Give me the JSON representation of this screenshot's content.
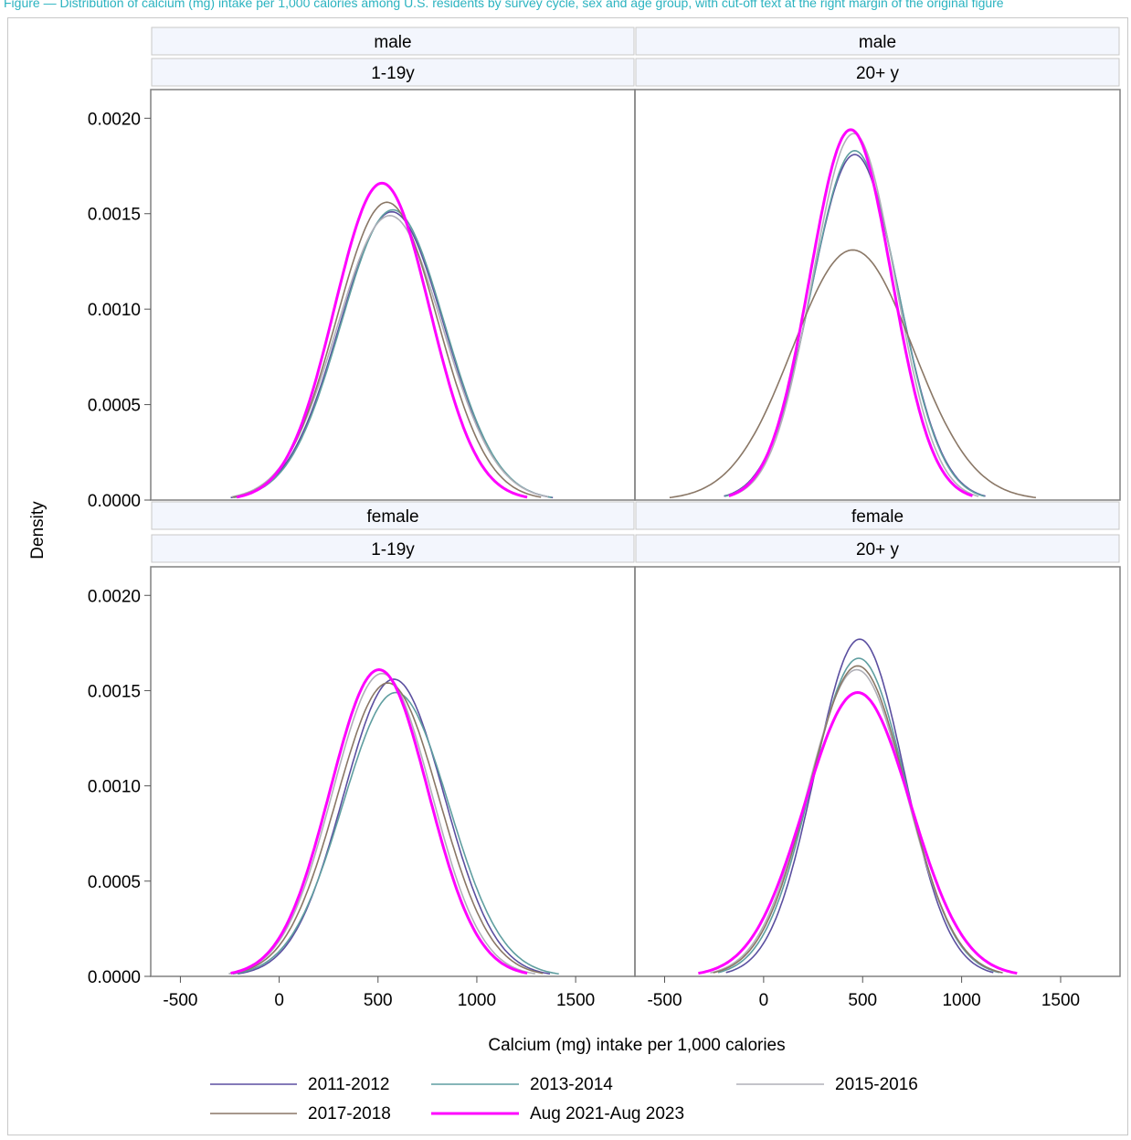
{
  "caption": "Figure — Distribution of calcium (mg) intake per 1,000 calories among U.S. residents by survey cycle, sex and age group, with cut-off text at the right margin of the original figure",
  "chart_data": {
    "type": "line",
    "xlabel": "Calcium (mg) intake per 1,000 calories",
    "ylabel": "Density",
    "xlim": [
      -650,
      1800
    ],
    "ylim": [
      0,
      0.00215
    ],
    "xticks": [
      -500,
      0,
      500,
      1000,
      1500
    ],
    "yticks": [
      0.0,
      0.0005,
      0.001,
      0.0015,
      0.002
    ],
    "ytick_labels": [
      "0.0000",
      "0.0005",
      "0.0010",
      "0.0015",
      "0.0020"
    ],
    "grid": false,
    "legend_position": "bottom",
    "series_styles": [
      {
        "name": "2011-2012",
        "color": "#5b4fa0",
        "width": 1.6
      },
      {
        "name": "2013-2014",
        "color": "#5f9ea0",
        "width": 1.6
      },
      {
        "name": "2015-2016",
        "color": "#b0b0b8",
        "width": 1.6
      },
      {
        "name": "2017-2018",
        "color": "#8a7766",
        "width": 1.6
      },
      {
        "name": "Aug 2021-Aug 2023",
        "color": "#ff00ff",
        "width": 3
      }
    ],
    "panels": [
      {
        "sex": "male",
        "age": "1-19y",
        "curves": [
          {
            "name": "2011-2012",
            "mean": 570,
            "peak": 0.00151,
            "range": [
              -245,
              1385
            ]
          },
          {
            "name": "2013-2014",
            "mean": 575,
            "peak": 0.00152,
            "range": [
              -230,
              1380
            ]
          },
          {
            "name": "2015-2016",
            "mean": 560,
            "peak": 0.00149,
            "range": [
              -240,
              1360
            ]
          },
          {
            "name": "2017-2018",
            "mean": 545,
            "peak": 0.00156,
            "range": [
              -235,
              1325
            ]
          },
          {
            "name": "Aug 2021-Aug 2023",
            "mean": 520,
            "peak": 0.00166,
            "range": [
              -215,
              1255
            ]
          }
        ]
      },
      {
        "sex": "male",
        "age": "20+ y",
        "curves": [
          {
            "name": "2011-2012",
            "mean": 460,
            "peak": 0.00181,
            "range": [
              -200,
              1120
            ]
          },
          {
            "name": "2013-2014",
            "mean": 460,
            "peak": 0.00183,
            "range": [
              -195,
              1115
            ]
          },
          {
            "name": "2015-2016",
            "mean": 455,
            "peak": 0.00192,
            "range": [
              -175,
              1085
            ]
          },
          {
            "name": "2017-2018",
            "mean": 450,
            "peak": 0.00131,
            "range": [
              -475,
              1375
            ]
          },
          {
            "name": "Aug 2021-Aug 2023",
            "mean": 440,
            "peak": 0.00194,
            "range": [
              -175,
              1055
            ]
          }
        ]
      },
      {
        "sex": "female",
        "age": "1-19y",
        "curves": [
          {
            "name": "2011-2012",
            "mean": 580,
            "peak": 0.00156,
            "range": [
              -210,
              1370
            ]
          },
          {
            "name": "2013-2014",
            "mean": 590,
            "peak": 0.00149,
            "range": [
              -235,
              1415
            ]
          },
          {
            "name": "2015-2016",
            "mean": 520,
            "peak": 0.00159,
            "range": [
              -255,
              1295
            ]
          },
          {
            "name": "2017-2018",
            "mean": 550,
            "peak": 0.00154,
            "range": [
              -235,
              1335
            ]
          },
          {
            "name": "Aug 2021-Aug 2023",
            "mean": 505,
            "peak": 0.00161,
            "range": [
              -245,
              1255
            ]
          }
        ]
      },
      {
        "sex": "female",
        "age": "20+ y",
        "curves": [
          {
            "name": "2011-2012",
            "mean": 485,
            "peak": 0.00177,
            "range": [
              -190,
              1160
            ]
          },
          {
            "name": "2013-2014",
            "mean": 480,
            "peak": 0.00167,
            "range": [
              -230,
              1190
            ]
          },
          {
            "name": "2015-2016",
            "mean": 470,
            "peak": 0.00161,
            "range": [
              -270,
              1210
            ]
          },
          {
            "name": "2017-2018",
            "mean": 475,
            "peak": 0.00163,
            "range": [
              -255,
              1205
            ]
          },
          {
            "name": "Aug 2021-Aug 2023",
            "mean": 475,
            "peak": 0.00149,
            "range": [
              -330,
              1280
            ]
          }
        ]
      }
    ]
  }
}
